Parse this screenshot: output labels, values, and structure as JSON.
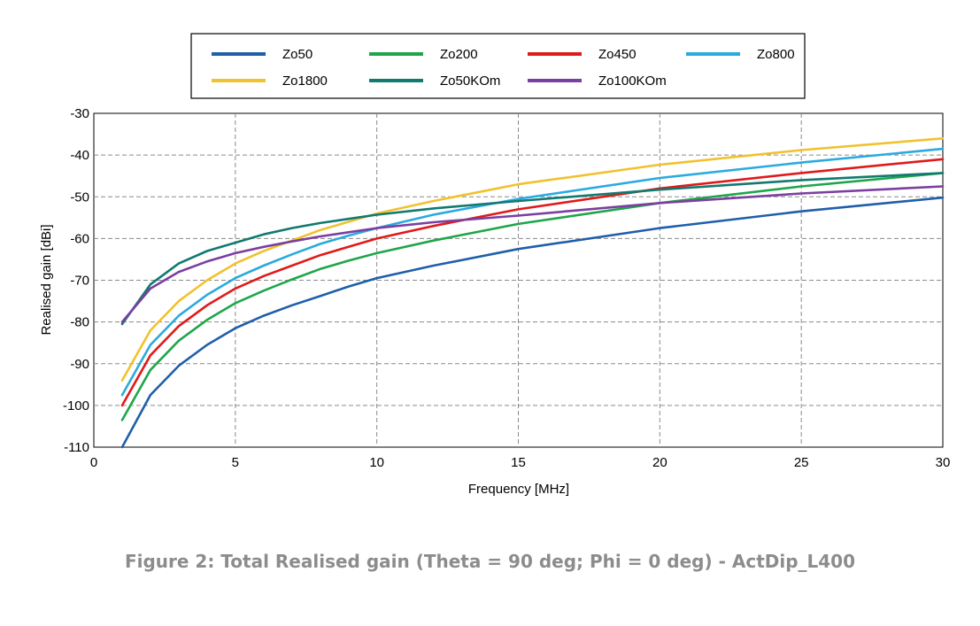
{
  "caption": "Figure 2: Total Realised gain (Theta = 90 deg; Phi = 0 deg) - ActDip_L400",
  "chart_data": {
    "type": "line",
    "xlabel": "Frequency [MHz]",
    "ylabel": "Realised gain [dBi]",
    "xlim": [
      0,
      30
    ],
    "ylim": [
      -110,
      -30
    ],
    "xticks": [
      "0",
      "5",
      "10",
      "15",
      "20",
      "25",
      "30"
    ],
    "yticks": [
      "-30",
      "-40",
      "-50",
      "-60",
      "-70",
      "-80",
      "-90",
      "-100",
      "-110"
    ],
    "grid": true,
    "legend_position": "top",
    "x": [
      1,
      2,
      3,
      4,
      5,
      6,
      7,
      8,
      9,
      10,
      12,
      15,
      20,
      25,
      30
    ],
    "series": [
      {
        "name": "Zo50",
        "color": "#1f5faa",
        "values": [
          -110,
          -97.5,
          -90.5,
          -85.5,
          -81.5,
          -78.5,
          -76,
          -73.8,
          -71.5,
          -69.5,
          -66.5,
          -62.5,
          -57.5,
          -53.5,
          -50.2
        ]
      },
      {
        "name": "Zo200",
        "color": "#1ea64a",
        "values": [
          -103.5,
          -91.5,
          -84.5,
          -79.5,
          -75.5,
          -72.5,
          -69.8,
          -67.3,
          -65.3,
          -63.5,
          -60.5,
          -56.5,
          -51.5,
          -47.5,
          -44.3
        ]
      },
      {
        "name": "Zo450",
        "color": "#e01a1a",
        "values": [
          -100,
          -88,
          -81,
          -76,
          -72,
          -69,
          -66.5,
          -64,
          -62,
          -60,
          -57,
          -53,
          -48,
          -44.3,
          -41
        ]
      },
      {
        "name": "Zo800",
        "color": "#2aaae0",
        "values": [
          -97.5,
          -85.5,
          -78.5,
          -73.5,
          -69.5,
          -66.5,
          -63.8,
          -61.3,
          -59.3,
          -57.5,
          -54.3,
          -50.5,
          -45.5,
          -41.8,
          -38.5
        ]
      },
      {
        "name": "Zo1800",
        "color": "#f2c12e",
        "values": [
          -94,
          -82,
          -75,
          -70,
          -66,
          -63,
          -60.5,
          -58,
          -56,
          -54,
          -51,
          -47,
          -42.3,
          -38.8,
          -36
        ]
      },
      {
        "name": "Zo50KOm",
        "color": "#127a70",
        "values": [
          -80.5,
          -71,
          -66,
          -63,
          -61,
          -59,
          -57.5,
          -56.3,
          -55.3,
          -54.3,
          -52.8,
          -51,
          -48.3,
          -46,
          -44.3
        ]
      },
      {
        "name": "Zo100KOm",
        "color": "#7b3fa0",
        "values": [
          -80,
          -72,
          -68,
          -65.5,
          -63.5,
          -62,
          -60.7,
          -59.5,
          -58.5,
          -57.5,
          -56.1,
          -54.5,
          -51.5,
          -49.2,
          -47.5
        ]
      }
    ]
  }
}
